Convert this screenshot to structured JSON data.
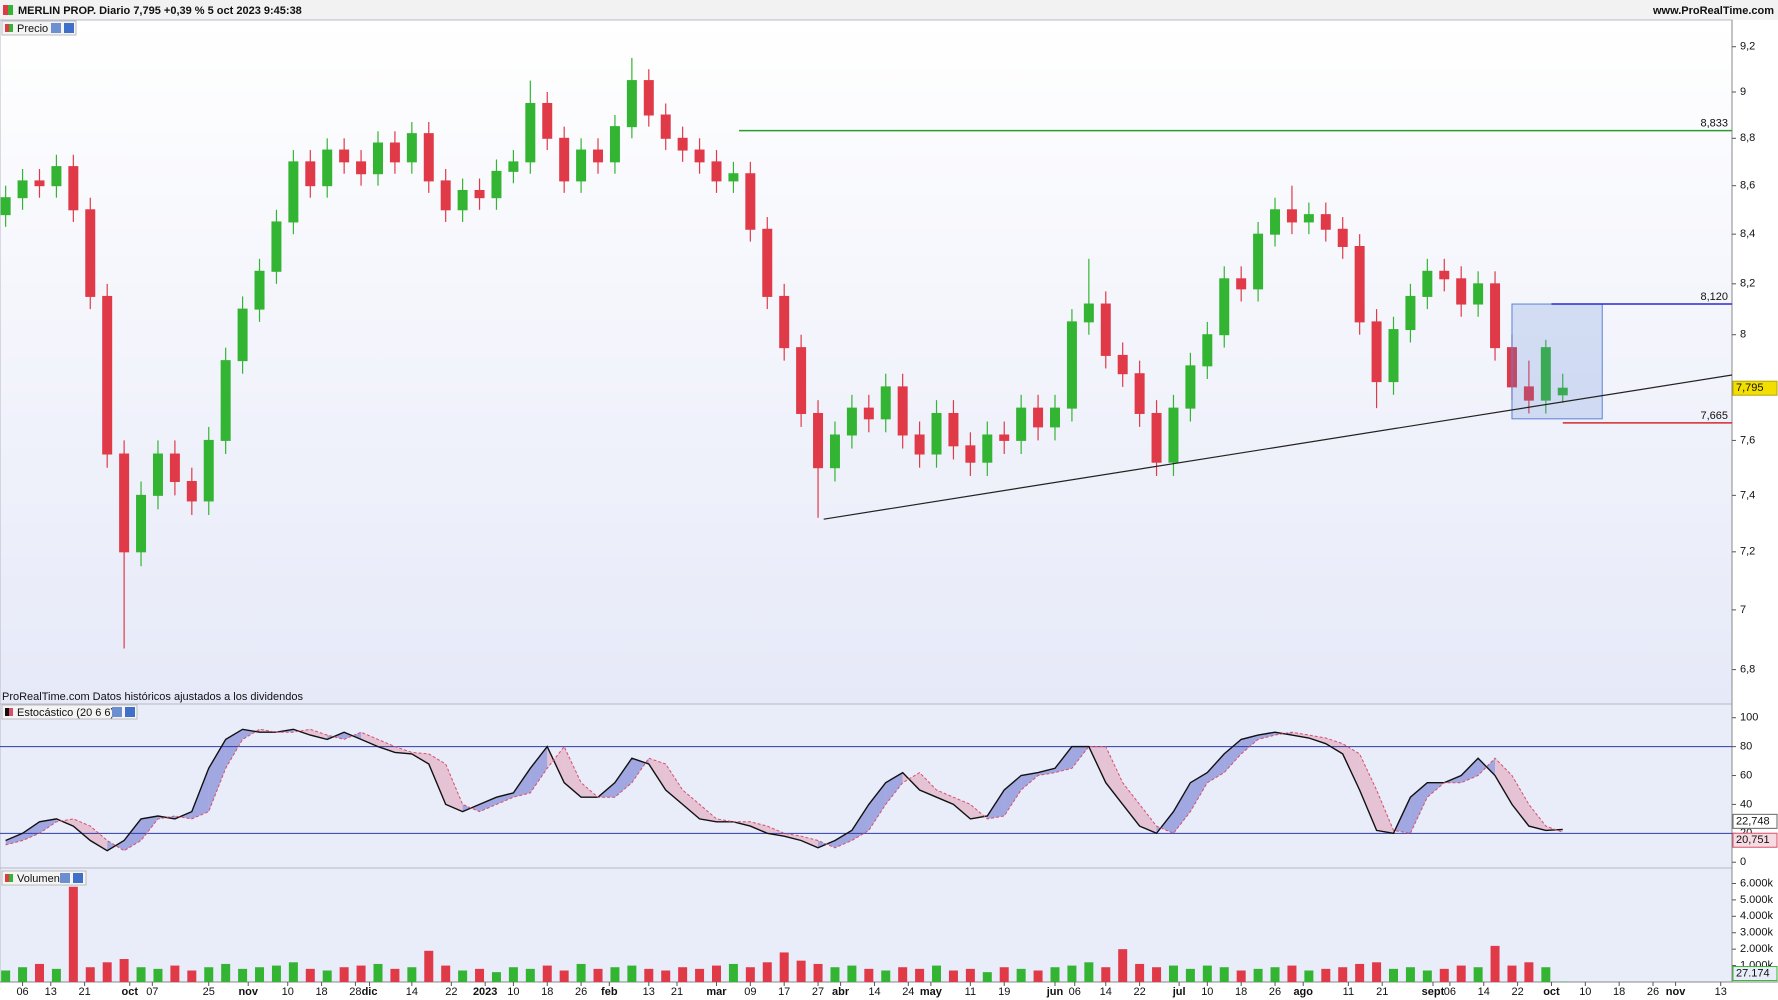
{
  "header": {
    "title": "MERLIN PROP. Diario 7,795 +0,39 % 5 oct 2023 9:45:38",
    "site": "www.ProRealTime.com"
  },
  "chart_data": [
    {
      "type": "candlestick",
      "title": "Precio",
      "note": "ProRealTime.com Datos históricos ajustados a los dividendos",
      "up_color": "#33b533",
      "down_color": "#e03a48",
      "log_scale": true,
      "xlim": [
        0,
        307
      ],
      "ylim": [
        6.72,
        9.32
      ],
      "xticks": [
        {
          "value": 4,
          "label": "06"
        },
        {
          "value": 9,
          "label": "13"
        },
        {
          "value": 15,
          "label": "21"
        },
        {
          "value": 23,
          "label": "oct"
        },
        {
          "value": 27,
          "label": "07"
        },
        {
          "value": 37,
          "label": "25"
        },
        {
          "value": 44,
          "label": "nov"
        },
        {
          "value": 51,
          "label": "10"
        },
        {
          "value": 57,
          "label": "18"
        },
        {
          "value": 63,
          "label": "28"
        },
        {
          "value": 65.5,
          "label": "dic"
        },
        {
          "value": 73,
          "label": "14"
        },
        {
          "value": 80,
          "label": "22"
        },
        {
          "value": 86,
          "label": "2023"
        },
        {
          "value": 91,
          "label": "10"
        },
        {
          "value": 97,
          "label": "18"
        },
        {
          "value": 103,
          "label": "26"
        },
        {
          "value": 108,
          "label": "feb"
        },
        {
          "value": 115,
          "label": "13"
        },
        {
          "value": 120,
          "label": "21"
        },
        {
          "value": 127,
          "label": "mar"
        },
        {
          "value": 133,
          "label": "09"
        },
        {
          "value": 139,
          "label": "17"
        },
        {
          "value": 145,
          "label": "27"
        },
        {
          "value": 149,
          "label": "abr"
        },
        {
          "value": 155,
          "label": "14"
        },
        {
          "value": 161,
          "label": "24"
        },
        {
          "value": 165,
          "label": "may"
        },
        {
          "value": 172,
          "label": "11"
        },
        {
          "value": 178,
          "label": "19"
        },
        {
          "value": 187,
          "label": "jun"
        },
        {
          "value": 190.5,
          "label": "06"
        },
        {
          "value": 196,
          "label": "14"
        },
        {
          "value": 202,
          "label": "22"
        },
        {
          "value": 209,
          "label": "jul"
        },
        {
          "value": 214,
          "label": "10"
        },
        {
          "value": 220,
          "label": "18"
        },
        {
          "value": 226,
          "label": "26"
        },
        {
          "value": 231,
          "label": "ago"
        },
        {
          "value": 239,
          "label": "11"
        },
        {
          "value": 245,
          "label": "21"
        },
        {
          "value": 254,
          "label": "sept"
        },
        {
          "value": 257,
          "label": "06"
        },
        {
          "value": 263,
          "label": "14"
        },
        {
          "value": 269,
          "label": "22"
        },
        {
          "value": 275,
          "label": "oct"
        },
        {
          "value": 281,
          "label": "10"
        },
        {
          "value": 287,
          "label": "18"
        },
        {
          "value": 293,
          "label": "26"
        },
        {
          "value": 297,
          "label": "nov"
        },
        {
          "value": 305,
          "label": "13"
        }
      ],
      "yticks": [
        {
          "value": 6.8,
          "label": "6,8"
        },
        7,
        {
          "value": 7.2,
          "label": "7,2"
        },
        {
          "value": 7.4,
          "label": "7,4"
        },
        {
          "value": 7.6,
          "label": "7,6"
        },
        8,
        {
          "value": 8.2,
          "label": "8,2"
        },
        {
          "value": 8.4,
          "label": "8,4"
        },
        {
          "value": 8.6,
          "label": "8,6"
        },
        {
          "value": 8.8,
          "label": "8,8"
        },
        9,
        {
          "value": 9.2,
          "label": "9,2"
        }
      ],
      "x": [
        1,
        4,
        7,
        10,
        13,
        16,
        19,
        22,
        25,
        28,
        31,
        34,
        37,
        40,
        43,
        46,
        49,
        52,
        55,
        58,
        61,
        64,
        67,
        70,
        73,
        76,
        79,
        82,
        85,
        88,
        91,
        94,
        97,
        100,
        103,
        106,
        109,
        112,
        115,
        118,
        121,
        124,
        127,
        130,
        133,
        136,
        139,
        142,
        145,
        148,
        151,
        154,
        157,
        160,
        163,
        166,
        169,
        172,
        175,
        178,
        181,
        184,
        187,
        190,
        193,
        196,
        199,
        202,
        205,
        208,
        211,
        214,
        217,
        220,
        223,
        226,
        229,
        232,
        235,
        238,
        241,
        244,
        247,
        250,
        253,
        256,
        259,
        262,
        265,
        268,
        271,
        274,
        277
      ],
      "open": [
        8.48,
        8.55,
        8.62,
        8.6,
        8.68,
        8.5,
        8.15,
        7.55,
        7.2,
        7.4,
        7.55,
        7.45,
        7.38,
        7.6,
        7.9,
        8.1,
        8.25,
        8.45,
        8.7,
        8.6,
        8.75,
        8.7,
        8.65,
        8.78,
        8.7,
        8.82,
        8.62,
        8.5,
        8.58,
        8.55,
        8.66,
        8.7,
        8.95,
        8.8,
        8.62,
        8.75,
        8.7,
        8.85,
        9.05,
        8.9,
        8.8,
        8.75,
        8.7,
        8.62,
        8.65,
        8.42,
        8.15,
        7.95,
        7.7,
        7.5,
        7.62,
        7.72,
        7.68,
        7.8,
        7.62,
        7.55,
        7.7,
        7.58,
        7.52,
        7.62,
        7.6,
        7.72,
        7.65,
        7.72,
        8.05,
        8.12,
        7.92,
        7.85,
        7.7,
        7.52,
        7.72,
        7.88,
        8.0,
        8.22,
        8.18,
        8.4,
        8.5,
        8.45,
        8.48,
        8.42,
        8.35,
        8.05,
        7.82,
        8.02,
        8.15,
        8.25,
        8.22,
        8.12,
        8.2,
        7.95,
        7.8,
        7.75,
        7.77
      ],
      "high": [
        8.6,
        8.67,
        8.67,
        8.73,
        8.73,
        8.55,
        8.2,
        7.6,
        7.45,
        7.6,
        7.6,
        7.5,
        7.65,
        7.95,
        8.15,
        8.3,
        8.5,
        8.75,
        8.75,
        8.8,
        8.8,
        8.75,
        8.83,
        8.83,
        8.87,
        8.87,
        8.67,
        8.63,
        8.63,
        8.71,
        8.75,
        9.05,
        9.0,
        8.85,
        8.8,
        8.8,
        8.9,
        9.15,
        9.1,
        8.95,
        8.85,
        8.8,
        8.75,
        8.7,
        8.7,
        8.47,
        8.2,
        8.0,
        7.75,
        7.67,
        7.77,
        7.77,
        7.85,
        7.85,
        7.67,
        7.75,
        7.75,
        7.63,
        7.67,
        7.67,
        7.77,
        7.77,
        7.77,
        8.1,
        8.3,
        8.17,
        7.97,
        7.9,
        7.75,
        7.77,
        7.93,
        8.05,
        8.27,
        8.27,
        8.45,
        8.55,
        8.6,
        8.53,
        8.53,
        8.47,
        8.4,
        8.1,
        8.07,
        8.2,
        8.3,
        8.3,
        8.27,
        8.25,
        8.25,
        8.0,
        7.9,
        7.98,
        7.85
      ],
      "low": [
        8.43,
        8.5,
        8.55,
        8.55,
        8.45,
        8.1,
        7.5,
        6.87,
        7.15,
        7.35,
        7.4,
        7.33,
        7.33,
        7.55,
        7.85,
        8.05,
        8.2,
        8.4,
        8.55,
        8.55,
        8.65,
        8.6,
        8.6,
        8.65,
        8.65,
        8.57,
        8.45,
        8.45,
        8.5,
        8.5,
        8.61,
        8.65,
        8.75,
        8.57,
        8.57,
        8.65,
        8.65,
        8.8,
        8.85,
        8.75,
        8.7,
        8.65,
        8.57,
        8.57,
        8.37,
        8.1,
        7.9,
        7.65,
        7.32,
        7.45,
        7.57,
        7.63,
        7.63,
        7.57,
        7.5,
        7.5,
        7.53,
        7.47,
        7.47,
        7.55,
        7.55,
        7.6,
        7.6,
        7.67,
        8.0,
        7.87,
        7.8,
        7.65,
        7.47,
        7.47,
        7.67,
        7.83,
        7.95,
        8.13,
        8.13,
        8.35,
        8.4,
        8.4,
        8.37,
        8.3,
        8.0,
        7.72,
        7.77,
        7.97,
        8.1,
        8.17,
        8.07,
        8.07,
        7.9,
        7.75,
        7.7,
        7.7,
        7.74
      ],
      "close": [
        8.55,
        8.62,
        8.6,
        8.68,
        8.5,
        8.15,
        7.55,
        7.2,
        7.4,
        7.55,
        7.45,
        7.38,
        7.6,
        7.9,
        8.1,
        8.25,
        8.45,
        8.7,
        8.6,
        8.75,
        8.7,
        8.65,
        8.78,
        8.7,
        8.82,
        8.62,
        8.5,
        8.58,
        8.55,
        8.66,
        8.7,
        8.95,
        8.8,
        8.62,
        8.75,
        8.7,
        8.85,
        9.05,
        8.9,
        8.8,
        8.75,
        8.7,
        8.62,
        8.65,
        8.42,
        8.15,
        7.95,
        7.7,
        7.5,
        7.62,
        7.72,
        7.68,
        7.8,
        7.62,
        7.55,
        7.7,
        7.58,
        7.52,
        7.62,
        7.6,
        7.72,
        7.65,
        7.72,
        8.05,
        8.12,
        7.92,
        7.85,
        7.7,
        7.52,
        7.72,
        7.88,
        8.0,
        8.22,
        8.18,
        8.4,
        8.5,
        8.45,
        8.48,
        8.42,
        8.35,
        8.05,
        7.82,
        8.02,
        8.15,
        8.25,
        8.22,
        8.12,
        8.2,
        7.95,
        7.8,
        7.75,
        7.95,
        7.795
      ],
      "last_label": "7,795",
      "levels": [
        {
          "value": 8.833,
          "label": "8,833",
          "color": "#2a9d2a",
          "x_start": 131
        },
        {
          "value": 8.12,
          "label": "8,120",
          "color": "#2b2bd0",
          "x_start": 275
        },
        {
          "value": 7.665,
          "label": "7,665",
          "color": "#d42a2a",
          "x_start": 277
        }
      ],
      "trendline": {
        "x": [
          146,
          307
        ],
        "y": [
          7.315,
          7.845
        ],
        "color": "#222222"
      },
      "box": {
        "x": [
          268,
          284
        ],
        "y": [
          7.68,
          8.12
        ],
        "color": "#5a82d8"
      }
    },
    {
      "type": "line",
      "title": "Estocástico (20 6 6)",
      "ylim": [
        -4,
        109.5
      ],
      "yticks": [
        0,
        20,
        40,
        60,
        80,
        100
      ],
      "bands": [
        20,
        80
      ],
      "band_color": "#2c3ca8",
      "series": [
        {
          "color": "#111111",
          "values": [
            15,
            20,
            28,
            30,
            25,
            15,
            8,
            15,
            30,
            32,
            30,
            35,
            65,
            85,
            92,
            90,
            90,
            92,
            88,
            85,
            90,
            85,
            80,
            76,
            75,
            68,
            40,
            35,
            40,
            45,
            48,
            65,
            80,
            55,
            45,
            45,
            55,
            72,
            68,
            50,
            40,
            30,
            28,
            28,
            25,
            20,
            18,
            15,
            10,
            15,
            22,
            40,
            55,
            62,
            50,
            45,
            40,
            30,
            32,
            50,
            60,
            62,
            65,
            80,
            80,
            55,
            40,
            25,
            20,
            35,
            55,
            62,
            75,
            85,
            88,
            90,
            88,
            86,
            82,
            75,
            50,
            22,
            20,
            45,
            55,
            55,
            60,
            72,
            60,
            40,
            25,
            22,
            22.748
          ],
          "last_label": "22,748"
        },
        {
          "color": "#d9506a",
          "values": [
            12,
            15,
            20,
            28,
            30,
            25,
            15,
            8,
            15,
            30,
            32,
            30,
            35,
            65,
            85,
            92,
            90,
            90,
            92,
            88,
            85,
            90,
            85,
            80,
            76,
            75,
            68,
            40,
            35,
            40,
            45,
            48,
            65,
            80,
            55,
            45,
            45,
            55,
            72,
            68,
            50,
            40,
            30,
            28,
            28,
            25,
            20,
            18,
            15,
            10,
            15,
            22,
            40,
            55,
            62,
            50,
            45,
            40,
            30,
            32,
            50,
            60,
            62,
            65,
            80,
            80,
            55,
            40,
            25,
            20,
            35,
            55,
            62,
            75,
            85,
            88,
            90,
            88,
            86,
            82,
            75,
            50,
            22,
            20,
            45,
            55,
            55,
            60,
            72,
            60,
            40,
            25,
            20.751
          ],
          "last_label": "20,751"
        }
      ]
    },
    {
      "type": "bar",
      "title": "Volumen",
      "ylim": [
        0,
        6760000
      ],
      "yticks": [
        {
          "value": 1000000,
          "label": "1.000k"
        },
        {
          "value": 2000000,
          "label": "2.000k"
        },
        {
          "value": 3000000,
          "label": "3.000k"
        },
        {
          "value": 4000000,
          "label": "4.000k"
        },
        {
          "value": 5000000,
          "label": "5.000k"
        },
        {
          "value": 6000000,
          "label": "6.000k"
        }
      ],
      "values": [
        700000,
        900000,
        1100000,
        800000,
        5800000,
        900000,
        1200000,
        1400000,
        900000,
        800000,
        1000000,
        700000,
        900000,
        1100000,
        800000,
        900000,
        1000000,
        1200000,
        800000,
        700000,
        900000,
        1000000,
        1100000,
        800000,
        900000,
        1900000,
        1000000,
        700000,
        800000,
        600000,
        900000,
        800000,
        1000000,
        700000,
        1100000,
        800000,
        900000,
        1000000,
        800000,
        700000,
        900000,
        800000,
        1000000,
        1100000,
        900000,
        1200000,
        1800000,
        1300000,
        1100000,
        900000,
        1000000,
        800000,
        700000,
        900000,
        800000,
        1000000,
        700000,
        800000,
        600000,
        900000,
        800000,
        700000,
        900000,
        1000000,
        1200000,
        900000,
        2000000,
        1100000,
        900000,
        1000000,
        800000,
        1000000,
        900000,
        700000,
        800000,
        900000,
        1000000,
        700000,
        800000,
        900000,
        1100000,
        1200000,
        800000,
        900000,
        700000,
        800000,
        1000000,
        900000,
        2200000,
        1000000,
        1200000,
        900000,
        27174
      ],
      "last_label": "27.174"
    }
  ]
}
